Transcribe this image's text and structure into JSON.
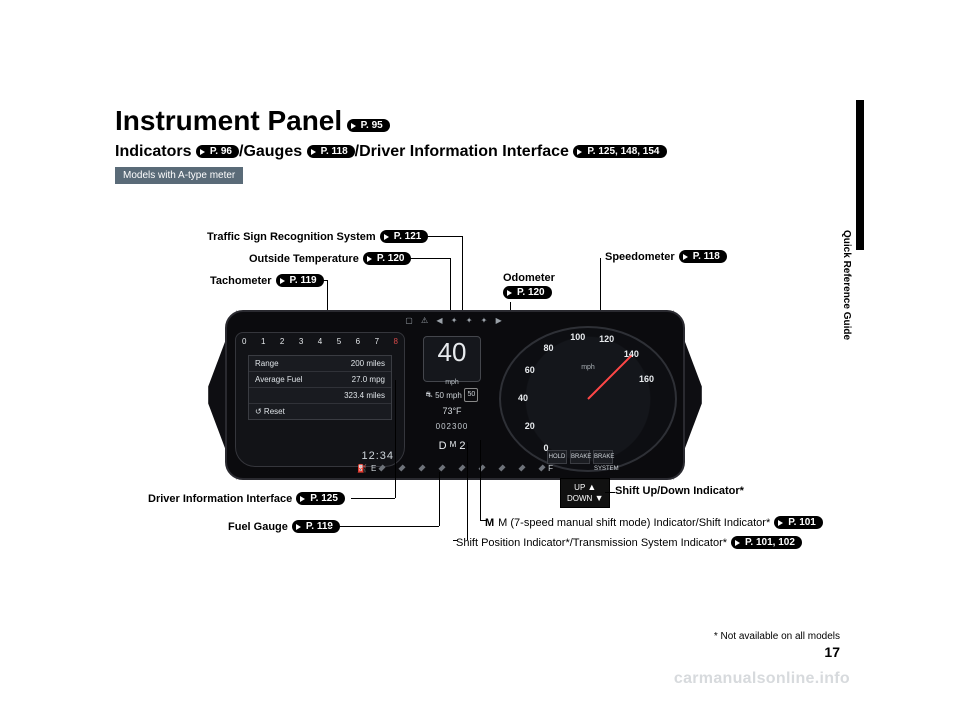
{
  "header": {
    "title": "Instrument Panel",
    "title_page": "P. 95",
    "sub_indicators": "Indicators",
    "sub_indicators_page": "P. 96",
    "sub_gauges": "Gauges",
    "sub_gauges_page": "P. 118",
    "sub_dii": "Driver Information Interface",
    "sub_dii_page": "P. 125, 148, 154",
    "model_badge": "Models with A-type meter"
  },
  "side": {
    "tab": "Quick Reference Guide"
  },
  "callouts": {
    "tsr": {
      "label": "Traffic Sign Recognition System",
      "page": "P. 121"
    },
    "temp": {
      "label": "Outside Temperature",
      "page": "P. 120"
    },
    "tach": {
      "label": "Tachometer",
      "page": "P. 119"
    },
    "speedo": {
      "label": "Speedometer",
      "page": "P. 118"
    },
    "odo_label": "Odometer",
    "odo_page": "P. 120",
    "dii": {
      "label": "Driver Information Interface",
      "page": "P. 125"
    },
    "fuel_label": "Fuel Gauge",
    "fuel_page": "P. 119",
    "shiftud": "Shift Up/Down Indicator*",
    "mmode": {
      "label": "M (7-speed manual shift mode) Indicator/Shift Indicator*",
      "page": "P. 101"
    },
    "shiftpos": {
      "label": "Shift Position Indicator*/Transmission System Indicator*",
      "page": "P. 101, 102"
    }
  },
  "cluster": {
    "toprow_glyphs": "▢ ⚠ ◀ ✦ ✦ ✦ ▶",
    "speed": "40",
    "speed_unit": "mph",
    "limit_label": "50 mph",
    "limit_sign": "50",
    "temp": "73°F",
    "odo": "002300",
    "shift": "D",
    "shift_m": "M",
    "shift_gear": "2",
    "clock": "12:34",
    "dii_rows": {
      "r1l": "Range",
      "r1r": "200 miles",
      "r2l": "Average Fuel",
      "r2r": "27.0 mpg",
      "r3l": "",
      "r3r": "323.4 miles",
      "r4l": "↺ Reset",
      "r4r": ""
    },
    "tach_labels": [
      "0",
      "1",
      "2",
      "3",
      "4",
      "5",
      "6",
      "7",
      "8"
    ],
    "speedo_labels": [
      "0",
      "20",
      "40",
      "60",
      "80",
      "100",
      "120",
      "140",
      "160"
    ],
    "speedo_unit": "mph",
    "speedo_boxes": [
      "HOLD",
      "BRAKE",
      "BRAKE SYSTEM"
    ],
    "fuel_E": "E",
    "fuel_F": "F"
  },
  "shiftud_box": {
    "up": "UP",
    "down": "DOWN"
  },
  "footnote": "* Not available on all models",
  "pagenum": "17",
  "watermark": "carmanualsonline.info",
  "style": {
    "speedo_ticks": [
      {
        "label": "0",
        "angle": 216
      },
      {
        "label": "20",
        "angle": 243
      },
      {
        "label": "40",
        "angle": 270
      },
      {
        "label": "60",
        "angle": 297
      },
      {
        "label": "80",
        "angle": 324
      },
      {
        "label": "100",
        "angle": 351
      },
      {
        "label": "120",
        "angle": 18
      },
      {
        "label": "140",
        "angle": 45
      },
      {
        "label": "160",
        "angle": 72
      }
    ],
    "tick_radius": 62
  }
}
